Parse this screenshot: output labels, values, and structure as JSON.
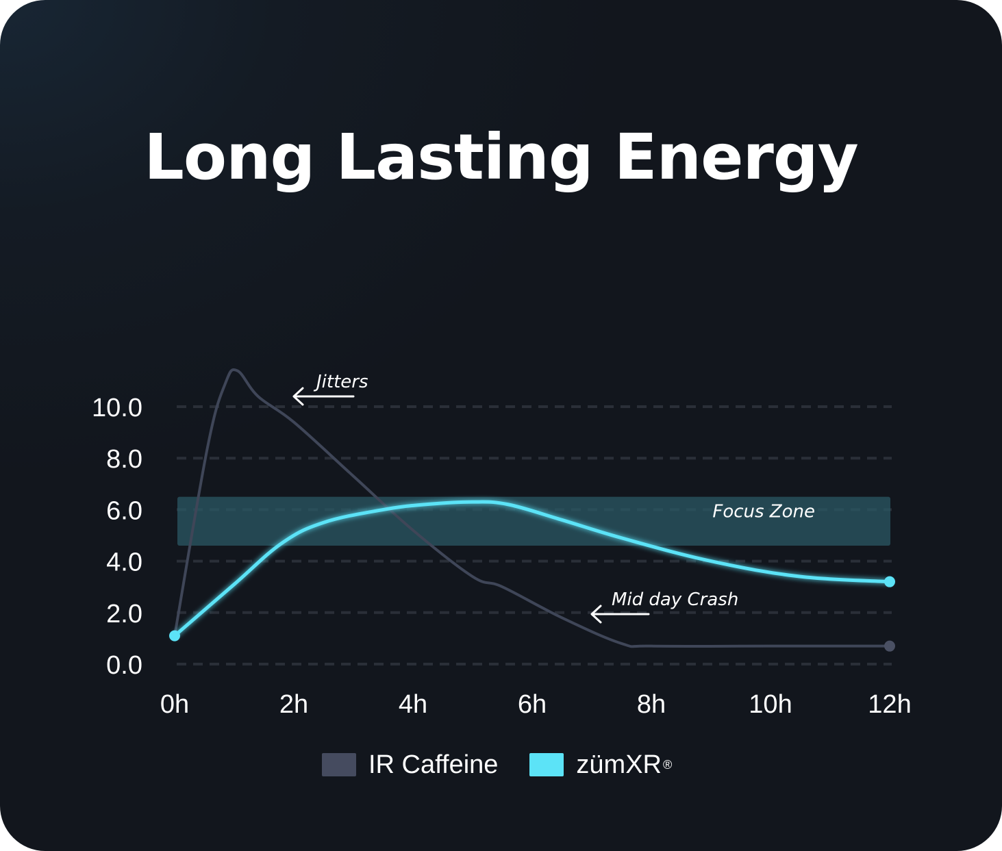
{
  "title": "Long Lasting Energy",
  "chart_data": {
    "type": "line",
    "title": "Long Lasting Energy",
    "xlabel": "",
    "ylabel": "",
    "x_ticks": [
      "0h",
      "2h",
      "4h",
      "6h",
      "8h",
      "10h",
      "12h"
    ],
    "y_ticks": [
      "0.0",
      "2.0",
      "4.0",
      "6.0",
      "8.0",
      "10.0"
    ],
    "xlim": [
      0,
      12
    ],
    "ylim": [
      0,
      10
    ],
    "grid": "horizontal dashed",
    "legend_position": "bottom",
    "series": [
      {
        "name": "IR Caffeine",
        "color": "#3f4658",
        "x": [
          0,
          0.55,
          0.85,
          1.05,
          1.4,
          2,
          3,
          4,
          5,
          5.5,
          6.5,
          7.5,
          8,
          10,
          12
        ],
        "y": [
          1.1,
          8.4,
          10.9,
          11.4,
          10.4,
          9.4,
          7.3,
          5.2,
          3.4,
          3.0,
          1.8,
          0.8,
          0.7,
          0.7,
          0.7
        ]
      },
      {
        "name": "zümXR",
        "color": "#5ce3f7",
        "x": [
          0,
          1,
          1.8,
          2.5,
          3.5,
          4.2,
          5,
          5.6,
          6.5,
          7.5,
          9,
          10.5,
          12
        ],
        "y": [
          1.1,
          3.1,
          4.7,
          5.5,
          6.0,
          6.2,
          6.3,
          6.2,
          5.6,
          4.9,
          4.0,
          3.4,
          3.2
        ]
      }
    ],
    "bands": [
      {
        "label": "Focus Zone",
        "y_from": 4.6,
        "y_to": 6.5,
        "color": "#2b5a66"
      }
    ],
    "annotations": [
      {
        "text": "Jitters"
      },
      {
        "text": "Mid day Crash"
      }
    ]
  },
  "legend": {
    "item1": "IR Caffeine",
    "item2": "zümXR",
    "item2_mark": "®"
  }
}
